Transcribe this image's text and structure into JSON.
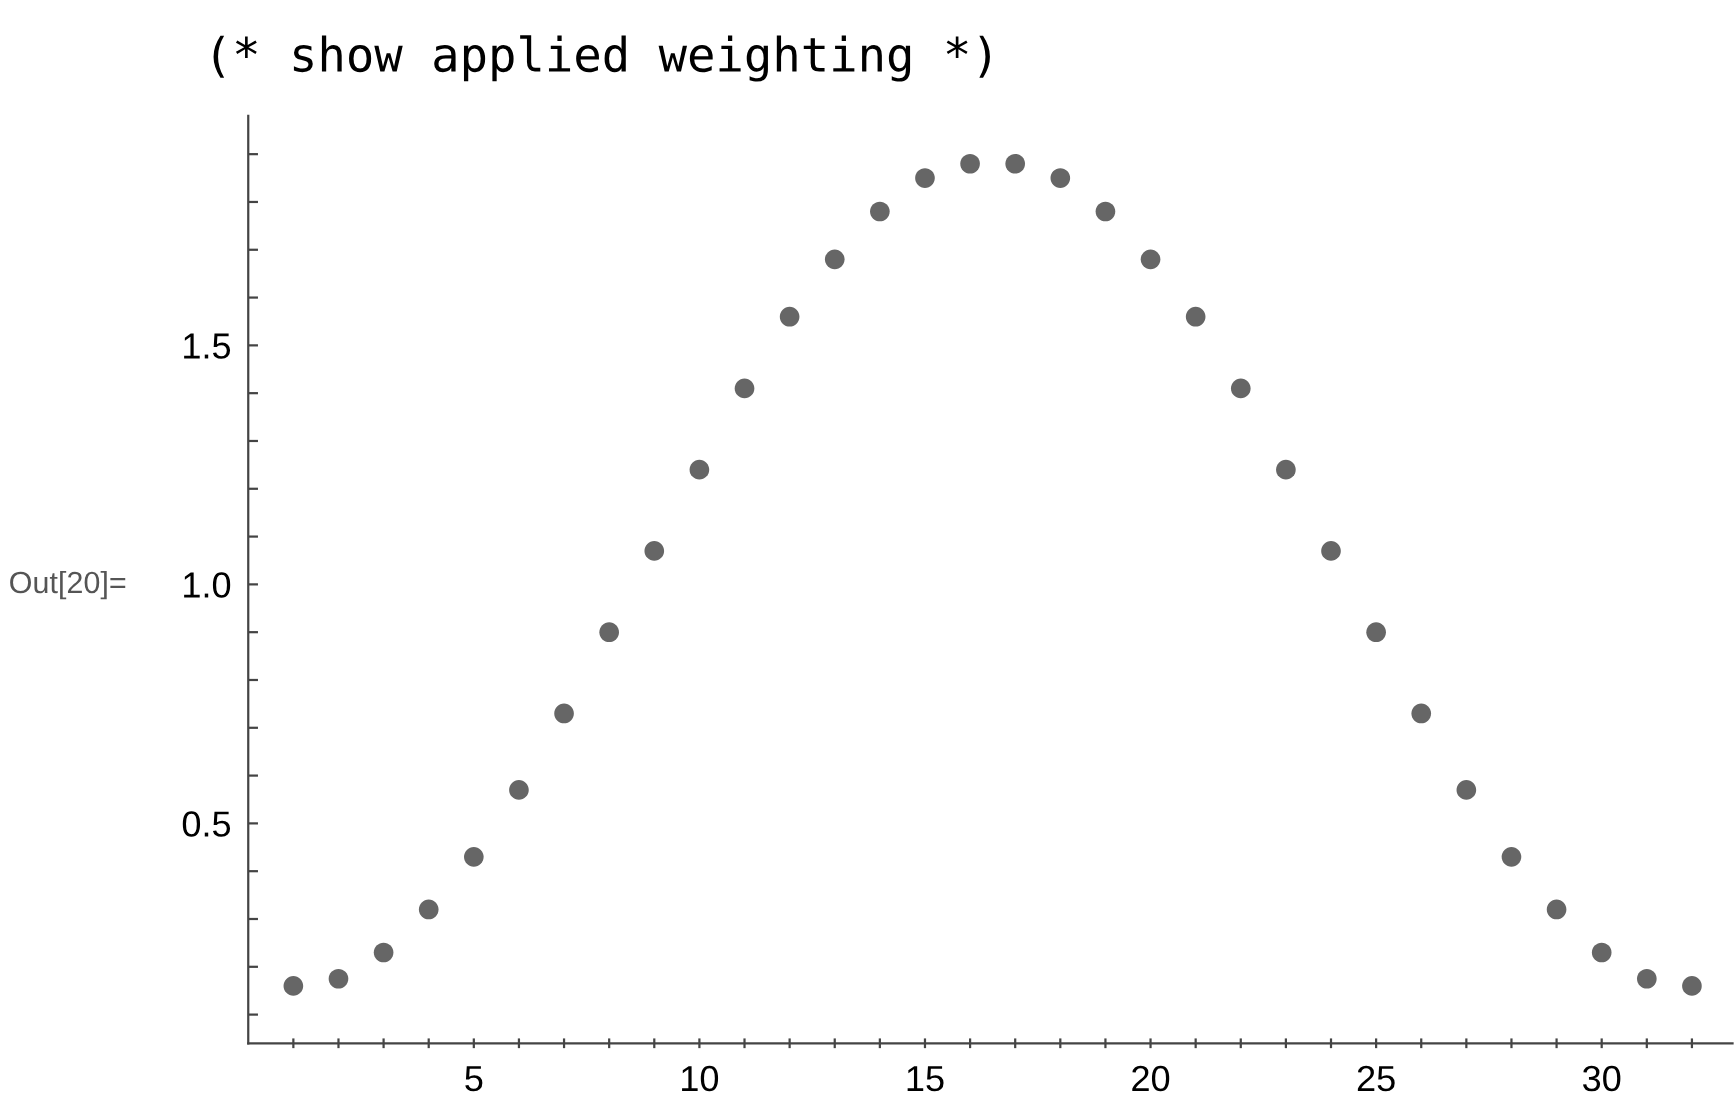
{
  "chart_data": {
    "type": "scatter",
    "title": "(* show applied weighting *)",
    "annotations": [
      "Out[20]="
    ],
    "x": [
      1,
      2,
      3,
      4,
      5,
      6,
      7,
      8,
      9,
      10,
      11,
      12,
      13,
      14,
      15,
      16,
      17,
      18,
      19,
      20,
      21,
      22,
      23,
      24,
      25,
      26,
      27,
      28,
      29,
      30,
      31,
      32
    ],
    "series": [
      {
        "color": "#666666",
        "values": [
          0.16,
          0.175,
          0.23,
          0.32,
          0.43,
          0.57,
          0.73,
          0.9,
          1.07,
          1.24,
          1.41,
          1.56,
          1.68,
          1.78,
          1.85,
          1.88,
          1.88,
          1.85,
          1.78,
          1.68,
          1.56,
          1.41,
          1.24,
          1.07,
          0.9,
          0.73,
          0.57,
          0.43,
          0.32,
          0.23,
          0.175,
          0.16
        ]
      }
    ],
    "xlim": [
      0,
      32.9
    ],
    "ylim": [
      0.04,
      1.98
    ],
    "xticks": [
      {
        "value": 1,
        "label": null
      },
      {
        "value": 2,
        "label": null
      },
      {
        "value": 3,
        "label": null
      },
      {
        "value": 4,
        "label": null
      },
      5,
      {
        "value": 6,
        "label": null
      },
      {
        "value": 7,
        "label": null
      },
      {
        "value": 8,
        "label": null
      },
      {
        "value": 9,
        "label": null
      },
      10,
      {
        "value": 11,
        "label": null
      },
      {
        "value": 12,
        "label": null
      },
      {
        "value": 13,
        "label": null
      },
      {
        "value": 14,
        "label": null
      },
      15,
      {
        "value": 16,
        "label": null
      },
      {
        "value": 17,
        "label": null
      },
      {
        "value": 18,
        "label": null
      },
      {
        "value": 19,
        "label": null
      },
      20,
      {
        "value": 21,
        "label": null
      },
      {
        "value": 22,
        "label": null
      },
      {
        "value": 23,
        "label": null
      },
      {
        "value": 24,
        "label": null
      },
      25,
      {
        "value": 26,
        "label": null
      },
      {
        "value": 27,
        "label": null
      },
      {
        "value": 28,
        "label": null
      },
      {
        "value": 29,
        "label": null
      },
      30,
      {
        "value": 31,
        "label": null
      },
      {
        "value": 32,
        "label": null
      }
    ],
    "yticks": [
      {
        "value": 0.1,
        "label": null
      },
      {
        "value": 0.2,
        "label": null
      },
      {
        "value": 0.3,
        "label": null
      },
      {
        "value": 0.4,
        "label": null
      },
      {
        "value": 0.5,
        "label": "0.5"
      },
      {
        "value": 0.6,
        "label": null
      },
      {
        "value": 0.7,
        "label": null
      },
      {
        "value": 0.8,
        "label": null
      },
      {
        "value": 0.9,
        "label": null
      },
      {
        "value": 1.0,
        "label": "1.0"
      },
      {
        "value": 1.1,
        "label": null
      },
      {
        "value": 1.2,
        "label": null
      },
      {
        "value": 1.3,
        "label": null
      },
      {
        "value": 1.4,
        "label": null
      },
      {
        "value": 1.5,
        "label": "1.5"
      },
      {
        "value": 1.6,
        "label": null
      },
      {
        "value": 1.7,
        "label": null
      },
      {
        "value": 1.8,
        "label": null
      },
      {
        "value": 1.9,
        "label": null
      }
    ],
    "marker": "circle",
    "grid": false,
    "legend": false
  }
}
